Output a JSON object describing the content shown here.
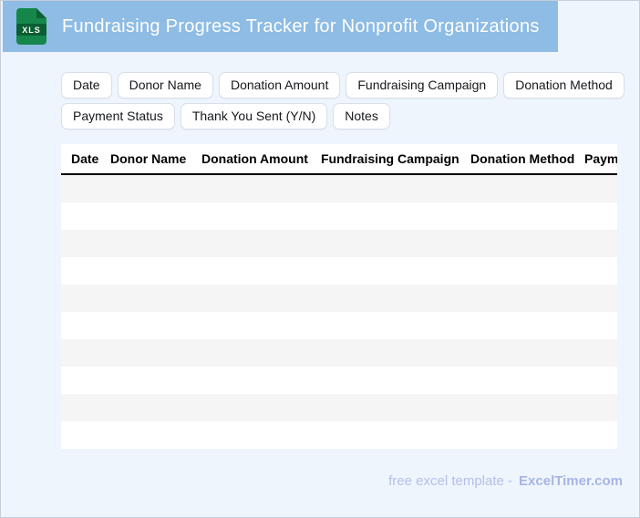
{
  "header": {
    "title": "Fundraising Progress Tracker for Nonprofit Organizations",
    "file_badge": "XLS"
  },
  "field_chips": [
    "Date",
    "Donor Name",
    "Donation Amount",
    "Fundraising Campaign",
    "Donation Method",
    "Payment Status",
    "Thank You Sent (Y/N)",
    "Notes"
  ],
  "table": {
    "columns": [
      "Date",
      "Donor Name",
      "Donation Amount",
      "Fundraising Campaign",
      "Donation Method",
      "Payment Status"
    ],
    "row_count": 10
  },
  "footer": {
    "text": "free excel template -",
    "brand": "ExcelTimer.com"
  },
  "colors": {
    "banner": "#8ebce4",
    "page_background": "#eef5fd",
    "icon_green": "#16874b",
    "icon_band_green": "#0a5e31",
    "row_alt": "#f5f5f6",
    "header_rule": "#000000",
    "footer_text": "#b3bfea",
    "brand_text": "#a7b5e6"
  }
}
